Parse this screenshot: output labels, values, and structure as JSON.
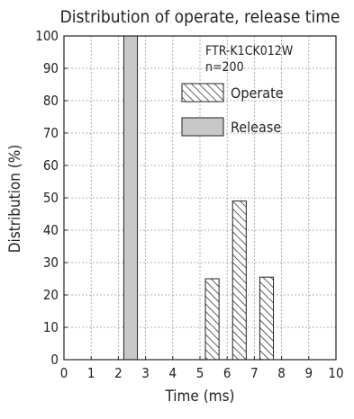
{
  "chart_data": {
    "type": "bar",
    "title": "Distribution of operate, release time",
    "xlabel": "Time (ms)",
    "ylabel": "Distribution (%)",
    "xlim": [
      0,
      10
    ],
    "ylim": [
      0,
      100
    ],
    "xticks": [
      "0",
      "1",
      "2",
      "3",
      "4",
      "5",
      "6",
      "7",
      "8",
      "9",
      "10"
    ],
    "yticks": [
      "0",
      "10",
      "20",
      "30",
      "40",
      "50",
      "60",
      "70",
      "80",
      "90",
      "100"
    ],
    "grid": true,
    "annotation": {
      "model": "FTR-K1CK012W",
      "sample": "n=200"
    },
    "legend_position": "top-right",
    "series": [
      {
        "name": "Operate",
        "pattern": "hatched",
        "color": "#222222",
        "bars": [
          {
            "x0": 5.2,
            "x1": 5.7,
            "value": 25
          },
          {
            "x0": 6.2,
            "x1": 6.7,
            "value": 49
          },
          {
            "x0": 7.2,
            "x1": 7.7,
            "value": 25.5
          }
        ]
      },
      {
        "name": "Release",
        "pattern": "solid",
        "color": "#c8c8c8",
        "bars": [
          {
            "x0": 2.2,
            "x1": 2.7,
            "value": 100
          }
        ]
      }
    ]
  }
}
